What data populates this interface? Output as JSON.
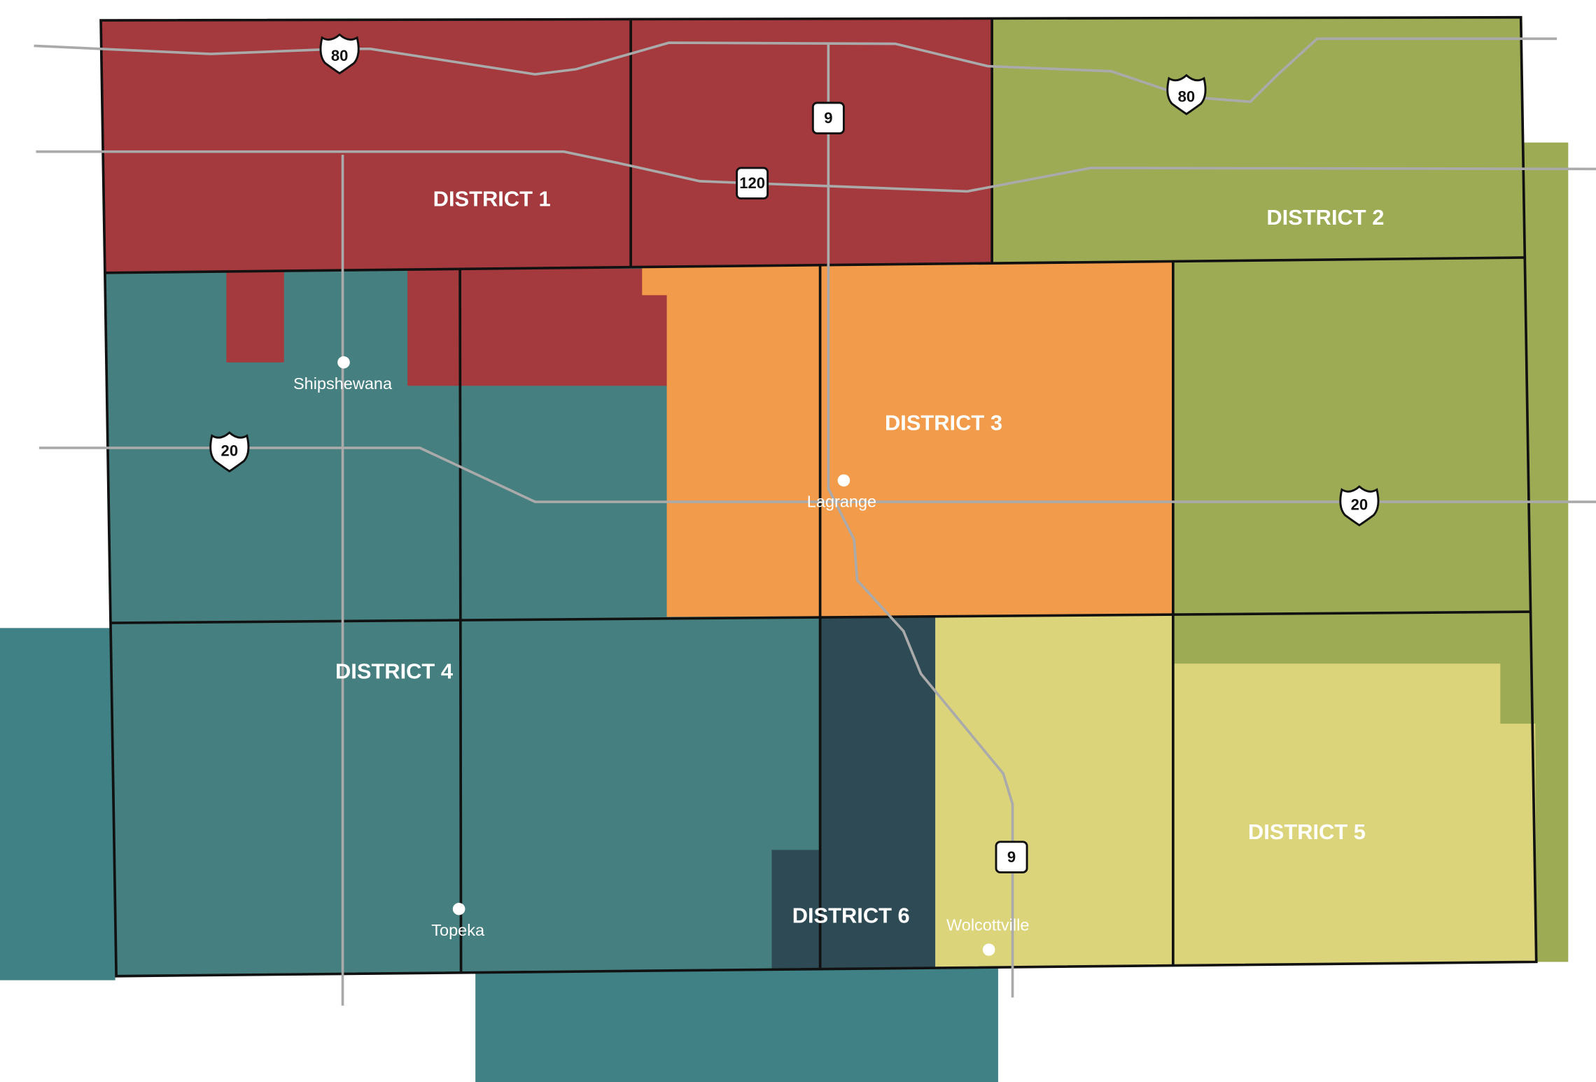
{
  "districts": [
    {
      "label": "DISTRICT 1"
    },
    {
      "label": "DISTRICT 2"
    },
    {
      "label": "DISTRICT 3"
    },
    {
      "label": "DISTRICT 4"
    },
    {
      "label": "DISTRICT 5"
    },
    {
      "label": "DISTRICT 6"
    }
  ],
  "towns": [
    {
      "label": "Shipshewana"
    },
    {
      "label": "Lagrange"
    },
    {
      "label": "Topeka"
    },
    {
      "label": "Wolcottville"
    }
  ],
  "highways": [
    {
      "label": "80"
    },
    {
      "label": "80"
    },
    {
      "label": "9"
    },
    {
      "label": "9"
    },
    {
      "label": "120"
    },
    {
      "label": "20"
    },
    {
      "label": "20"
    }
  ]
}
